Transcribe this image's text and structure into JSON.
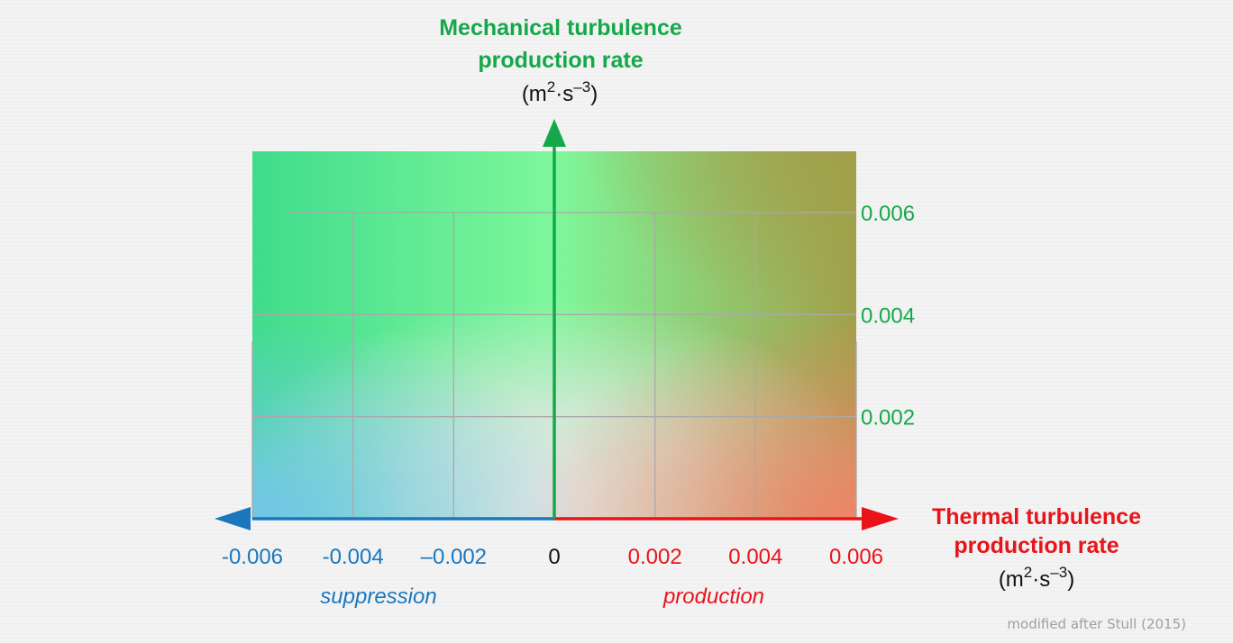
{
  "chart_data": {
    "type": "diagram",
    "y_title_lines": [
      "Mechanical turbulence",
      "production rate"
    ],
    "x_title_lines": [
      "Thermal turbulence",
      "production rate"
    ],
    "units": {
      "base": "(m",
      "sup1": "2",
      "mid": "·s",
      "sup2": "–3",
      "end": ")"
    },
    "x_ticks": [
      {
        "value": -0.006,
        "label": "-0.006"
      },
      {
        "value": -0.004,
        "label": "-0.004"
      },
      {
        "value": -0.002,
        "label": "–0.002"
      },
      {
        "value": 0,
        "label": "0"
      },
      {
        "value": 0.002,
        "label": "0.002"
      },
      {
        "value": 0.004,
        "label": "0.004"
      },
      {
        "value": 0.006,
        "label": "0.006"
      }
    ],
    "y_ticks": [
      {
        "value": 0.006,
        "label": "0.006"
      },
      {
        "value": 0.004,
        "label": "0.004"
      },
      {
        "value": 0.002,
        "label": "0.002"
      }
    ],
    "xlim": [
      -0.006,
      0.006
    ],
    "ylim": [
      0,
      0.0072
    ],
    "grid": true,
    "regions": {
      "left": "suppression",
      "right": "production"
    },
    "credit": "modified after Stull (2015)",
    "colors": {
      "mechanical": "#15a84a",
      "thermal": "#e8141a",
      "suppression": "#1a77bd",
      "zero": "#111111",
      "grid": "#a9a9a9",
      "corner_top_left": "#3fdc8c",
      "corner_top_center": "#7ef79a",
      "corner_top_right": "#a2a04a",
      "corner_bottom_left": "#72c6ea",
      "corner_bottom_right": "#ef8466",
      "center": "#e6e6e6"
    }
  }
}
